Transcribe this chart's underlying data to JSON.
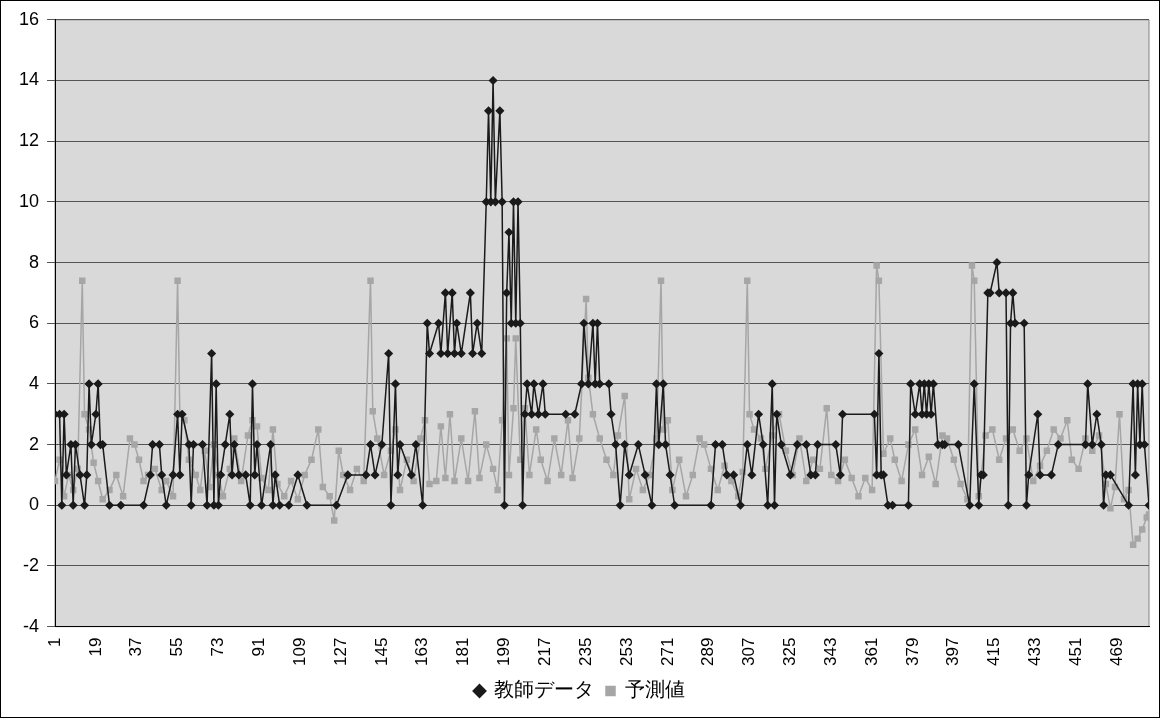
{
  "chart_data": {
    "type": "line",
    "xlim": [
      1,
      483
    ],
    "xticks": [
      1,
      19,
      37,
      55,
      73,
      91,
      109,
      127,
      145,
      163,
      181,
      199,
      217,
      235,
      253,
      271,
      289,
      307,
      325,
      343,
      361,
      379,
      397,
      415,
      433,
      451,
      469
    ],
    "ylim": [
      -4,
      16
    ],
    "yticks": [
      -4,
      -2,
      0,
      2,
      4,
      6,
      8,
      10,
      12,
      14,
      16
    ],
    "grid": "y",
    "legend": "bottom",
    "line_style": "solid",
    "series": [
      {
        "name": "教師データ",
        "color": "#1a1a1a",
        "marker": "diamond",
        "x": [
          1,
          3,
          4,
          5,
          6,
          8,
          9,
          10,
          12,
          14,
          15,
          16,
          17,
          19,
          20,
          21,
          22,
          25,
          30,
          40,
          43,
          44,
          47,
          48,
          50,
          53,
          55,
          56,
          57,
          60,
          61,
          62,
          66,
          68,
          70,
          71,
          72,
          73,
          74,
          76,
          78,
          79,
          80,
          82,
          85,
          87,
          88,
          89,
          90,
          92,
          96,
          97,
          98,
          100,
          104,
          108,
          112,
          125,
          130,
          138,
          140,
          142,
          145,
          148,
          149,
          151,
          152,
          153,
          158,
          160,
          163,
          165,
          166,
          170,
          171,
          173,
          174,
          176,
          177,
          178,
          180,
          184,
          185,
          187,
          189,
          191,
          192,
          193,
          194,
          195,
          197,
          198,
          199,
          200,
          201,
          202,
          203,
          204,
          205,
          206,
          207,
          208,
          209,
          211,
          212,
          214,
          216,
          217,
          226,
          230,
          233,
          234,
          236,
          238,
          239,
          240,
          241,
          245,
          246,
          248,
          250,
          252,
          254,
          258,
          261,
          264,
          266,
          267,
          269,
          270,
          272,
          274,
          290,
          292,
          295,
          297,
          300,
          303,
          306,
          308,
          311,
          313,
          315,
          317,
          318,
          319,
          321,
          325,
          328,
          332,
          334,
          336,
          337,
          345,
          347,
          348,
          362,
          363,
          364,
          365,
          366,
          368,
          370,
          377,
          378,
          380,
          382,
          383,
          384,
          385,
          386,
          387,
          388,
          390,
          392,
          393,
          399,
          404,
          406,
          408,
          409,
          410,
          412,
          413,
          416,
          417,
          420,
          421,
          422,
          423,
          424,
          428,
          429,
          430,
          434,
          435,
          440,
          443,
          455,
          456,
          458,
          460,
          462,
          463,
          464,
          466,
          474,
          476,
          477,
          478,
          479,
          480,
          481,
          483
        ],
        "values": [
          3,
          3,
          0,
          3,
          1,
          2,
          0,
          2,
          1,
          0,
          1,
          4,
          2,
          3,
          4,
          2,
          2,
          0,
          0,
          0,
          1,
          2,
          2,
          1,
          0,
          1,
          3,
          1,
          3,
          2,
          0,
          2,
          2,
          0,
          5,
          0,
          4,
          0,
          1,
          2,
          3,
          1,
          2,
          1,
          1,
          0,
          4,
          1,
          2,
          0,
          2,
          0,
          1,
          0,
          0,
          1,
          0,
          0,
          1,
          1,
          2,
          1,
          2,
          5,
          0,
          4,
          1,
          2,
          1,
          2,
          0,
          6,
          5,
          6,
          5,
          7,
          5,
          7,
          5,
          6,
          5,
          7,
          5,
          6,
          5,
          10,
          13,
          10,
          14,
          10,
          13,
          10,
          0,
          7,
          9,
          6,
          10,
          6,
          10,
          6,
          0,
          3,
          4,
          3,
          4,
          3,
          4,
          3,
          3,
          3,
          4,
          6,
          4,
          6,
          4,
          6,
          4,
          4,
          3,
          2,
          0,
          2,
          1,
          2,
          1,
          0,
          4,
          2,
          4,
          2,
          1,
          0,
          0,
          2,
          2,
          1,
          1,
          0,
          2,
          1,
          3,
          2,
          0,
          4,
          0,
          3,
          2,
          1,
          2,
          2,
          1,
          1,
          2,
          2,
          1,
          3,
          3,
          1,
          5,
          1,
          1,
          0,
          0,
          0,
          4,
          3,
          4,
          3,
          4,
          3,
          4,
          3,
          4,
          2,
          2,
          2,
          2,
          0,
          4,
          0,
          1,
          1,
          7,
          7,
          8,
          7,
          7,
          0,
          6,
          7,
          6,
          6,
          0,
          1,
          3,
          1,
          1,
          2,
          2,
          4,
          2,
          3,
          2,
          0,
          1,
          1,
          0,
          4,
          1,
          4,
          2,
          4,
          2,
          0
        ]
      },
      {
        "name": "予測値",
        "color": "#a6a6a6",
        "marker": "square",
        "x": [
          1,
          3,
          5,
          7,
          9,
          11,
          13,
          14,
          16,
          18,
          20,
          22,
          25,
          28,
          31,
          34,
          36,
          38,
          40,
          42,
          45,
          48,
          50,
          53,
          55,
          56,
          58,
          60,
          63,
          65,
          67,
          69,
          71,
          73,
          75,
          78,
          80,
          83,
          86,
          88,
          90,
          92,
          95,
          97,
          99,
          102,
          105,
          108,
          111,
          114,
          117,
          119,
          122,
          124,
          126,
          128,
          131,
          134,
          137,
          140,
          141,
          143,
          146,
          149,
          151,
          153,
          156,
          159,
          162,
          164,
          166,
          169,
          171,
          173,
          175,
          177,
          180,
          183,
          186,
          188,
          191,
          194,
          196,
          198,
          200,
          201,
          203,
          204,
          206,
          208,
          210,
          213,
          215,
          218,
          221,
          224,
          227,
          229,
          232,
          235,
          236,
          238,
          241,
          244,
          247,
          249,
          252,
          254,
          257,
          260,
          263,
          266,
          268,
          269,
          271,
          273,
          276,
          279,
          282,
          285,
          287,
          290,
          293,
          296,
          299,
          302,
          304,
          306,
          307,
          309,
          312,
          314,
          317,
          320,
          323,
          326,
          329,
          332,
          335,
          338,
          341,
          343,
          346,
          349,
          352,
          355,
          358,
          361,
          363,
          364,
          366,
          369,
          371,
          374,
          377,
          380,
          383,
          386,
          389,
          392,
          394,
          397,
          400,
          403,
          405,
          406,
          408,
          411,
          414,
          417,
          420,
          423,
          426,
          429,
          432,
          435,
          438,
          441,
          444,
          447,
          449,
          452,
          455,
          458,
          461,
          464,
          466,
          468,
          470,
          472,
          474,
          476,
          478,
          480,
          482,
          483
        ],
        "values": [
          0.8,
          1.5,
          0.3,
          1,
          0.5,
          1.2,
          7.4,
          3,
          2.5,
          1.4,
          0.8,
          0.2,
          0.5,
          1,
          0.3,
          2.2,
          2,
          1.5,
          0.8,
          1,
          1.2,
          0.5,
          0.8,
          0.3,
          7.4,
          3,
          2.8,
          1.5,
          1,
          0.5,
          1.8,
          0.6,
          2,
          1,
          0.3,
          1.2,
          2.2,
          0.8,
          2.3,
          2.8,
          2.6,
          0.9,
          0.5,
          2.5,
          0.7,
          0.3,
          0.8,
          0.2,
          1,
          1.5,
          2.5,
          0.6,
          0.3,
          -0.5,
          1.8,
          1,
          0.5,
          1.2,
          0.8,
          7.4,
          3.1,
          2.2,
          1,
          1.8,
          2.5,
          0.5,
          1.5,
          0.8,
          2.2,
          2.8,
          0.7,
          0.8,
          2.6,
          0.9,
          3,
          0.8,
          2.2,
          0.8,
          3.1,
          0.9,
          2,
          1.2,
          0.5,
          2.8,
          5.5,
          1,
          3.2,
          5.5,
          1.5,
          3.2,
          1,
          2.5,
          1.5,
          0.8,
          2.2,
          1,
          2.8,
          0.9,
          2.2,
          6.8,
          4.2,
          3,
          2.2,
          1.5,
          1,
          2.3,
          3.6,
          0.2,
          1.2,
          0.5,
          1,
          2.2,
          7.4,
          2.5,
          2.8,
          0.5,
          1.5,
          0.3,
          1,
          2.2,
          2,
          1.2,
          0.5,
          1.3,
          0.8,
          0.3,
          1.1,
          7.4,
          3,
          2.5,
          2.2,
          1.2,
          2.3,
          3,
          1.8,
          1,
          2.2,
          0.8,
          1.5,
          1.2,
          3.2,
          1,
          0.8,
          1.5,
          0.9,
          0.3,
          0.9,
          0.5,
          7.9,
          7.4,
          1.7,
          2.2,
          1.5,
          0.8,
          2,
          2.5,
          1,
          1.6,
          0.7,
          2.3,
          2.2,
          1.5,
          0.7,
          0.2,
          7.9,
          7.4,
          0.3,
          2.3,
          2.5,
          1.5,
          2.2,
          2.5,
          1.8,
          2.2,
          0.8,
          1.3,
          1.8,
          2.5,
          2.2,
          2.8,
          1.5,
          1.2,
          2.2,
          1.8,
          2.3,
          0.7,
          -0.1,
          0.6,
          3,
          0.2,
          0.5,
          -1.3,
          -1.1,
          -0.8,
          -0.4,
          -0.3
        ]
      }
    ]
  }
}
